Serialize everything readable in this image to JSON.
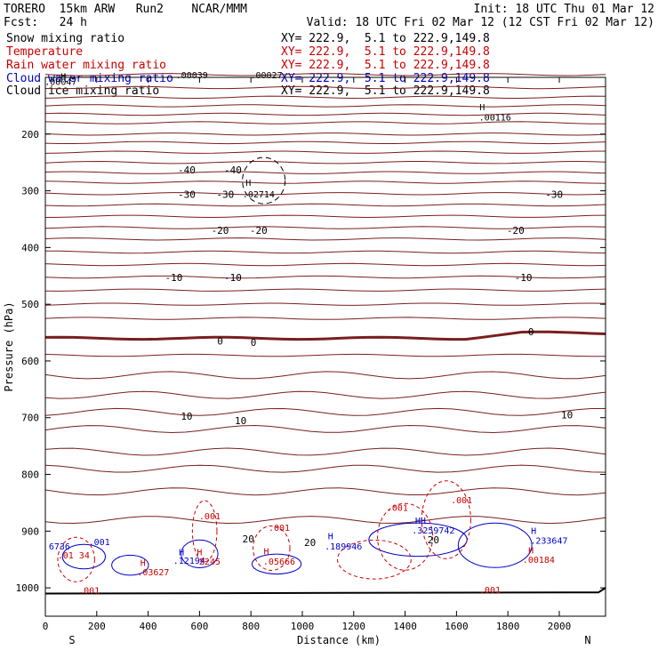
{
  "header": {
    "model": "TORERO  15km ARW   Run2    NCAR/MMM",
    "init": "Init: 18 UTC Thu 01 Mar 12",
    "fcst": "Fcst:   24 h",
    "valid": "Valid: 18 UTC Fri 02 Mar 12 (12 CST Fri 02 Mar 12)"
  },
  "legend": [
    {
      "name": "Snow mixing ratio",
      "color": "#000000"
    },
    {
      "name": "Temperature",
      "color": "#cc0000"
    },
    {
      "name": "Rain water mixing ratio",
      "color": "#cc0000"
    },
    {
      "name": "Cloud water mixing ratio",
      "color": "#0000cc"
    },
    {
      "name": "Cloud ice mixing ratio",
      "color": "#000000"
    }
  ],
  "xy_text": "XY= 222.9,  5.1 to 222.9,149.8",
  "chart_data": {
    "type": "cross-section contour",
    "xlabel": "Distance (km)",
    "ylabel": "Pressure (hPa)",
    "xlim": [
      0,
      2180
    ],
    "ylim": [
      1050,
      100
    ],
    "x_ticks": [
      0,
      200,
      400,
      600,
      800,
      1000,
      1200,
      1400,
      1600,
      1800,
      2000
    ],
    "y_ticks": [
      200,
      300,
      400,
      500,
      600,
      700,
      800,
      900,
      1000
    ],
    "end_labels": {
      "left": "S",
      "right": "N"
    },
    "temperature_labels": [
      {
        "x": 550,
        "p": 263,
        "text": "-40"
      },
      {
        "x": 730,
        "p": 263,
        "text": "-40"
      },
      {
        "x": 550,
        "p": 306,
        "text": "-30"
      },
      {
        "x": 700,
        "p": 306,
        "text": "-30"
      },
      {
        "x": 1980,
        "p": 306,
        "text": "-30"
      },
      {
        "x": 680,
        "p": 370,
        "text": "-20"
      },
      {
        "x": 830,
        "p": 370,
        "text": "-20"
      },
      {
        "x": 1830,
        "p": 370,
        "text": "-20"
      },
      {
        "x": 500,
        "p": 453,
        "text": "-10"
      },
      {
        "x": 730,
        "p": 453,
        "text": "-10"
      },
      {
        "x": 1860,
        "p": 453,
        "text": "-10"
      },
      {
        "x": 680,
        "p": 565,
        "text": "0"
      },
      {
        "x": 810,
        "p": 567,
        "text": "0"
      },
      {
        "x": 1890,
        "p": 548,
        "text": "0"
      },
      {
        "x": 550,
        "p": 697,
        "text": "10"
      },
      {
        "x": 760,
        "p": 705,
        "text": "10"
      },
      {
        "x": 2030,
        "p": 695,
        "text": "10"
      },
      {
        "x": 790,
        "p": 914,
        "text": "20"
      },
      {
        "x": 1030,
        "p": 920,
        "text": "20"
      },
      {
        "x": 1510,
        "p": 915,
        "text": "20"
      }
    ],
    "extrema_labels": [
      {
        "x": 70,
        "p": 98,
        "text": "H",
        "color": "#000000"
      },
      {
        "x": 60,
        "p": 107,
        "text": ".00047",
        "color": "#000000"
      },
      {
        "x": 570,
        "p": 95,
        "text": ".00039",
        "color": "#000000"
      },
      {
        "x": 860,
        "p": 95,
        "text": ".00027",
        "color": "#000000"
      },
      {
        "x": 1700,
        "p": 152,
        "text": "H",
        "color": "#000000"
      },
      {
        "x": 1750,
        "p": 170,
        "text": ".00116",
        "color": "#000000"
      },
      {
        "x": 790,
        "p": 285,
        "text": "H",
        "color": "#000000"
      },
      {
        "x": 830,
        "p": 305,
        "text": ".02714",
        "color": "#000000"
      },
      {
        "x": 640,
        "p": 873,
        "text": ".001",
        "color": "#cc0000"
      },
      {
        "x": 910,
        "p": 893,
        "text": ".001",
        "color": "#cc0000"
      },
      {
        "x": 1370,
        "p": 858,
        "text": ".001",
        "color": "#cc0000"
      },
      {
        "x": 1620,
        "p": 845,
        "text": ".001",
        "color": "#cc0000"
      },
      {
        "x": 1730,
        "p": 1003,
        "text": ".001",
        "color": "#cc0000"
      },
      {
        "x": 170,
        "p": 1004,
        "text": ".001",
        "color": "#cc0000"
      },
      {
        "x": 110,
        "p": 942,
        "text": ".01 34",
        "color": "#cc0000"
      },
      {
        "x": 55,
        "p": 926,
        "text": "6736",
        "color": "#0000cc"
      },
      {
        "x": 210,
        "p": 918,
        "text": ".001",
        "color": "#0000cc"
      },
      {
        "x": 380,
        "p": 955,
        "text": "H",
        "color": "#cc0000"
      },
      {
        "x": 420,
        "p": 972,
        "text": ".03627",
        "color": "#cc0000"
      },
      {
        "x": 530,
        "p": 936,
        "text": "H",
        "color": "#0000cc"
      },
      {
        "x": 560,
        "p": 951,
        "text": ".12194",
        "color": "#0000cc"
      },
      {
        "x": 600,
        "p": 936,
        "text": "H",
        "color": "#cc0000"
      },
      {
        "x": 640,
        "p": 953,
        "text": "2245",
        "color": "#cc0000"
      },
      {
        "x": 860,
        "p": 935,
        "text": "H",
        "color": "#cc0000"
      },
      {
        "x": 910,
        "p": 953,
        "text": ".05666",
        "color": "#cc0000"
      },
      {
        "x": 1110,
        "p": 908,
        "text": "H",
        "color": "#0000cc"
      },
      {
        "x": 1160,
        "p": 926,
        "text": ".189946",
        "color": "#0000cc"
      },
      {
        "x": 1460,
        "p": 881,
        "text": "HH",
        "color": "#0000cc"
      },
      {
        "x": 1510,
        "p": 898,
        "text": ".3259742",
        "color": "#0000cc"
      },
      {
        "x": 1900,
        "p": 899,
        "text": "H",
        "color": "#0000cc"
      },
      {
        "x": 1960,
        "p": 916,
        "text": ".233647",
        "color": "#0000cc"
      },
      {
        "x": 1890,
        "p": 933,
        "text": "H",
        "color": "#cc0000"
      },
      {
        "x": 1920,
        "p": 950,
        "text": ".00184",
        "color": "#cc0000"
      }
    ]
  }
}
